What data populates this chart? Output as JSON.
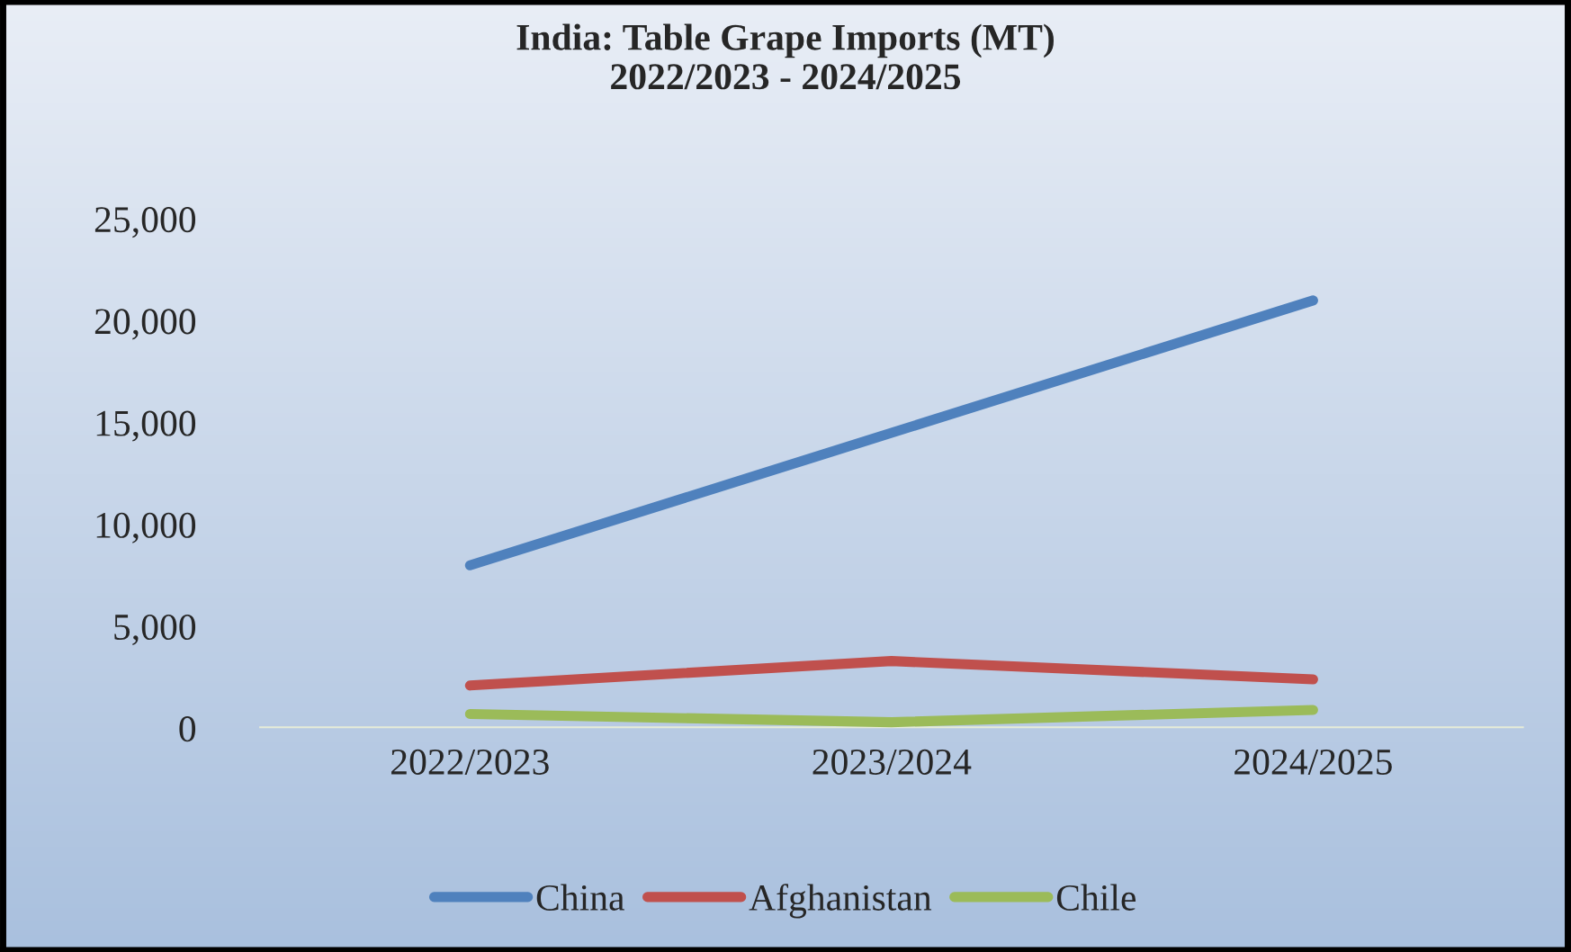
{
  "chart_data": {
    "type": "line",
    "title": "India: Table Grape Imports (MT)\n2022/2023 - 2024/2025",
    "categories": [
      "2022/2023",
      "2023/2024",
      "2024/2025"
    ],
    "series": [
      {
        "name": "China",
        "color": "#4f81bd",
        "values": [
          8000,
          14500,
          21000
        ]
      },
      {
        "name": "Afghanistan",
        "color": "#c0504d",
        "values": [
          2100,
          3300,
          2400
        ]
      },
      {
        "name": "Chile",
        "color": "#9bbb59",
        "values": [
          700,
          300,
          900
        ]
      }
    ],
    "ylim": [
      0,
      25000
    ],
    "yticks": [
      {
        "value": 0,
        "label": "0"
      },
      {
        "value": 5000,
        "label": "5,000"
      },
      {
        "value": 10000,
        "label": "10,000"
      },
      {
        "value": 15000,
        "label": "15,000"
      },
      {
        "value": 20000,
        "label": "20,000"
      },
      {
        "value": 25000,
        "label": "25,000"
      }
    ],
    "grid": false,
    "legend": "bottom",
    "marker": "none",
    "line_style": "solid"
  }
}
